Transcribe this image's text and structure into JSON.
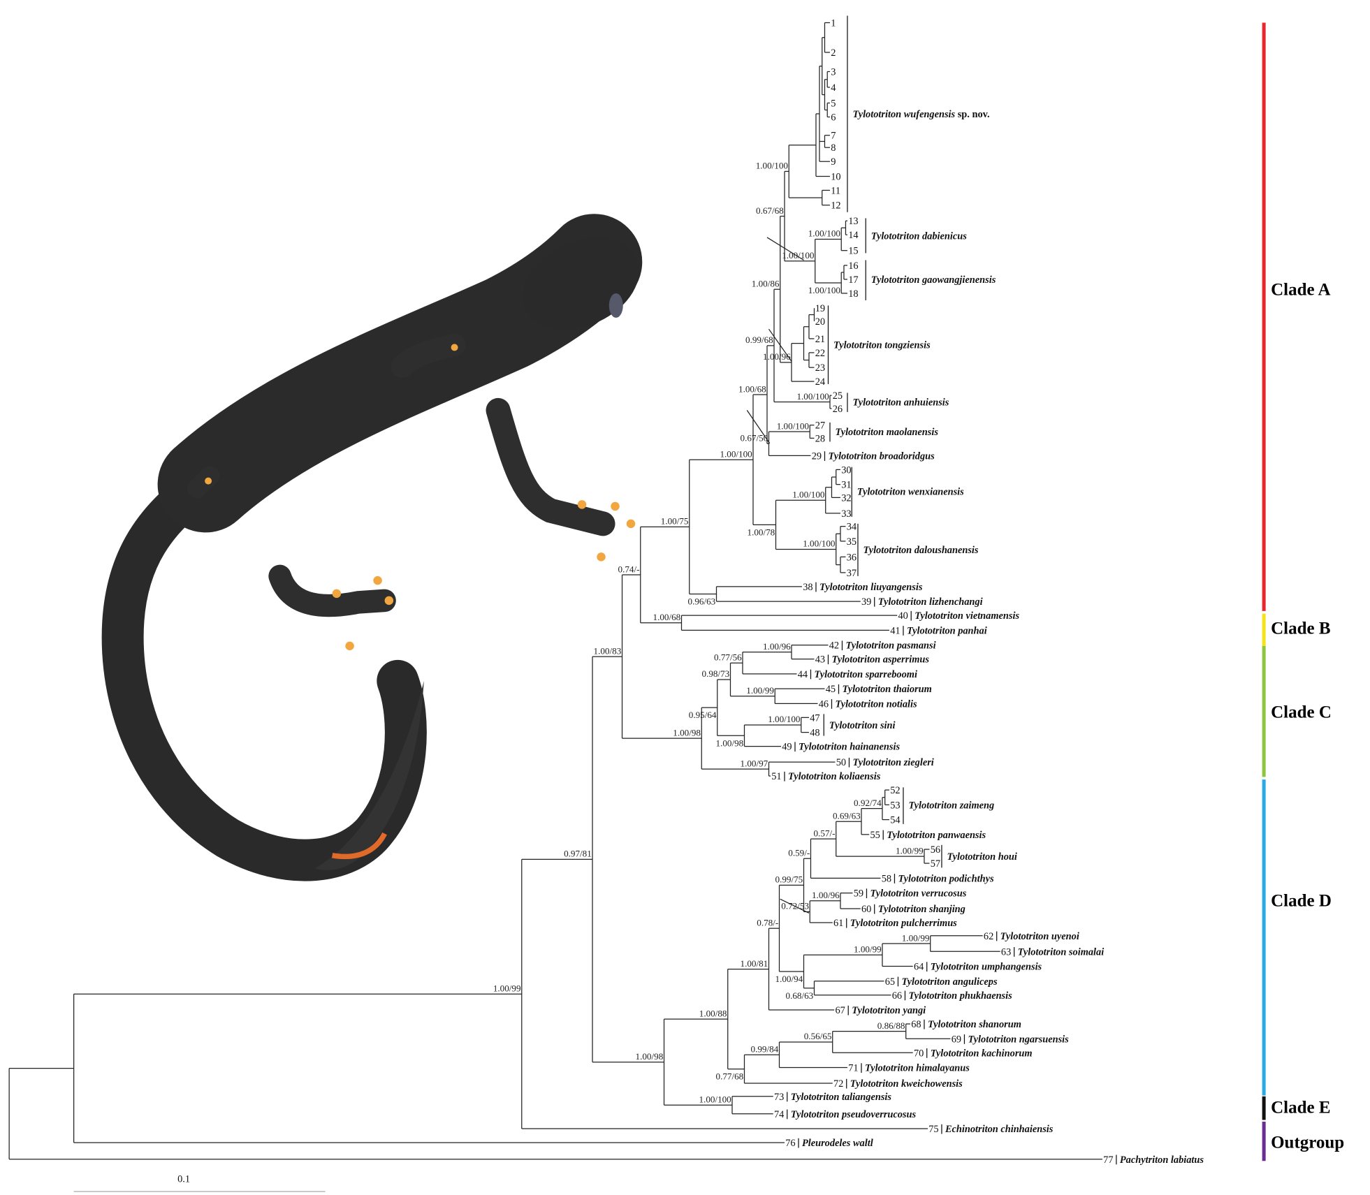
{
  "tree": {
    "tips": [
      "1",
      "2",
      "3",
      "4",
      "5",
      "6",
      "7",
      "8",
      "9",
      "10",
      "11",
      "12",
      "13",
      "14",
      "15",
      "16",
      "17",
      "18",
      "19",
      "20",
      "21",
      "22",
      "23",
      "24",
      "25",
      "26",
      "27",
      "28",
      "29",
      "30",
      "31",
      "32",
      "33",
      "34",
      "35",
      "36",
      "37",
      "38",
      "39",
      "40",
      "41",
      "42",
      "43",
      "44",
      "45",
      "46",
      "47",
      "48",
      "49",
      "50",
      "51",
      "52",
      "53",
      "54",
      "55",
      "56",
      "57",
      "58",
      "59",
      "60",
      "61",
      "62",
      "63",
      "64",
      "65",
      "66",
      "67",
      "68",
      "69",
      "70",
      "71",
      "72",
      "73",
      "74",
      "75",
      "76",
      "77"
    ],
    "single_species": {
      "29": "Tylototriton broadoridgus",
      "38": "Tylototriton liuyangensis",
      "39": "Tylototriton lizhenchangi",
      "40": "Tylototriton vietnamensis",
      "41": "Tylototriton panhai",
      "42": "Tylototriton pasmansi",
      "43": "Tylototriton asperrimus",
      "44": "Tylototriton sparreboomi",
      "45": "Tylototriton thaiorum",
      "46": "Tylototriton notialis",
      "49": "Tylototriton hainanensis",
      "50": "Tylototriton ziegleri",
      "51": "Tylototriton koliaensis",
      "55": "Tylototriton panwaensis",
      "58": "Tylototriton podichthys",
      "59": "Tylototriton verrucosus",
      "60": "Tylototriton shanjing",
      "61": "Tylototriton pulcherrimus",
      "62": "Tylototriton uyenoi",
      "63": "Tylototriton soimalai",
      "64": "Tylototriton umphangensis",
      "65": "Tylototriton anguliceps",
      "66": "Tylototriton phukhaensis",
      "67": "Tylototriton yangi",
      "68": "Tylototriton shanorum",
      "69": "Tylototriton ngarsuensis",
      "70": "Tylototriton kachinorum",
      "71": "Tylototriton himalayanus",
      "72": "Tylototriton kweichowensis",
      "73": "Tylototriton taliangensis",
      "74": "Tylototriton pseudoverrucosus",
      "75": "Echinotriton chinhaiensis",
      "76": "Pleurodeles waltl",
      "77": "Pachytriton labiatus"
    },
    "groups": [
      {
        "species": "Tylototriton wufengensis",
        "suffix": "sp. nov."
      },
      {
        "species": "Tylototriton dabienicus"
      },
      {
        "species": "Tylototriton gaowangjienensis"
      },
      {
        "species": "Tylototriton tongziensis"
      },
      {
        "species": "Tylototriton anhuiensis"
      },
      {
        "species": "Tylototriton maolanensis"
      },
      {
        "species": "Tylototriton wenxianensis"
      },
      {
        "species": "Tylototriton daloushanensis"
      },
      {
        "species": "Tylototriton sini"
      },
      {
        "species": "Tylototriton zaimeng"
      },
      {
        "species": "Tylototriton houi"
      }
    ],
    "supports": [
      "1.00/99",
      "0.97/81",
      "1.00/83",
      "0.74/-",
      "1.00/75",
      "1.00/100",
      "1.00/68",
      "0.99/68",
      "1.00/86",
      "0.67/68",
      "1.00/100",
      "1.00/100",
      "1.00/100",
      "1.00/100",
      "1.00/96",
      "1.00/100",
      "0.67/50",
      "1.00/100",
      "1.00/78",
      "1.00/100",
      "1.00/100",
      "0.96/63",
      "1.00/68",
      "1.00/98",
      "0.95/64",
      "0.98/73",
      "0.77/56",
      "1.00/96",
      "1.00/99",
      "1.00/100",
      "1.00/98",
      "1.00/97",
      "1.00/98",
      "1.00/88",
      "1.00/81",
      "0.78/-",
      "0.99/75",
      "0.59/-",
      "0.57/-",
      "0.69/63",
      "0.92/74",
      "1.00/99",
      "0.72/53",
      "1.00/96",
      "1.00/94",
      "1.00/99",
      "1.00/99",
      "0.68/63",
      "0.77/68",
      "0.99/84",
      "0.56/65",
      "0.86/88",
      "1.00/100"
    ]
  },
  "clades": [
    {
      "label": "Clade A",
      "color": "#e8262b"
    },
    {
      "label": "Clade B",
      "color": "#f5e31a"
    },
    {
      "label": "Clade C",
      "color": "#8cc63f"
    },
    {
      "label": "Clade D",
      "color": "#29abe2"
    },
    {
      "label": "Clade E",
      "color": "#111111"
    },
    {
      "label": "Outgroup",
      "color": "#6a2c91"
    }
  ],
  "scale_bar": {
    "label": "0.1"
  },
  "photo": {
    "subject": "newt-photo"
  }
}
